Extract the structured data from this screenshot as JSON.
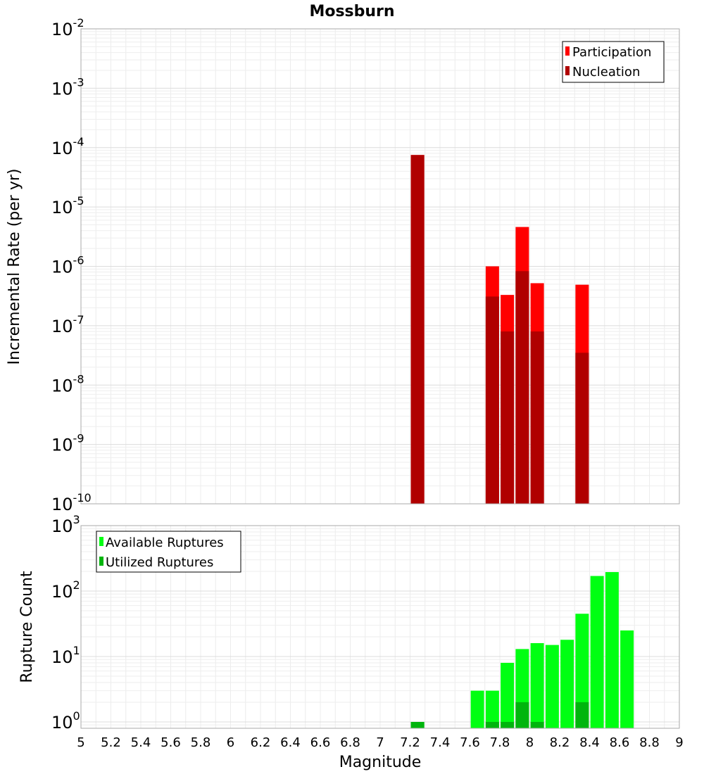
{
  "chart_data": [
    {
      "type": "bar",
      "title": "Mossburn",
      "ylabel": "Incremental Rate (per yr)",
      "yscale": "log",
      "ylim": [
        1e-10,
        0.01
      ],
      "xlim": [
        5,
        9
      ],
      "grid": true,
      "legend_position": "top-right",
      "yticks": [
        {
          "base": "10",
          "exp": "-2"
        },
        {
          "base": "10",
          "exp": "-3"
        },
        {
          "base": "10",
          "exp": "-4"
        },
        {
          "base": "10",
          "exp": "-5"
        },
        {
          "base": "10",
          "exp": "-6"
        },
        {
          "base": "10",
          "exp": "-7"
        },
        {
          "base": "10",
          "exp": "-8"
        },
        {
          "base": "10",
          "exp": "-9"
        },
        {
          "base": "10",
          "exp": "-10"
        }
      ],
      "series": [
        {
          "name": "Participation",
          "color": "#ff0000",
          "x": [
            7.25,
            7.75,
            7.85,
            7.95,
            8.05,
            8.35
          ],
          "values": [
            7.5e-05,
            1e-06,
            3.3e-07,
            4.6e-06,
            5.2e-07,
            4.9e-07
          ]
        },
        {
          "name": "Nucleation",
          "color": "#b00000",
          "x": [
            7.25,
            7.75,
            7.85,
            7.95,
            8.05,
            8.35
          ],
          "values": [
            7.5e-05,
            3.1e-07,
            8e-08,
            8.3e-07,
            8e-08,
            3.5e-08
          ]
        }
      ]
    },
    {
      "type": "bar",
      "ylabel": "Rupture Count",
      "xlabel": "Magnitude",
      "yscale": "log",
      "ylim": [
        0.8,
        1000
      ],
      "xlim": [
        5,
        9
      ],
      "grid": true,
      "legend_position": "top-left",
      "yticks": [
        {
          "base": "10",
          "exp": "3"
        },
        {
          "base": "10",
          "exp": "2"
        },
        {
          "base": "10",
          "exp": "1"
        },
        {
          "base": "10",
          "exp": "0"
        }
      ],
      "xticks": [
        "5",
        "5.2",
        "5.4",
        "5.6",
        "5.8",
        "6",
        "6.2",
        "6.4",
        "6.6",
        "6.8",
        "7",
        "7.2",
        "7.4",
        "7.6",
        "7.8",
        "8",
        "8.2",
        "8.4",
        "8.6",
        "8.8",
        "9"
      ],
      "series": [
        {
          "name": "Available Ruptures",
          "color": "#00ff12",
          "x": [
            7.25,
            7.65,
            7.75,
            7.85,
            7.95,
            8.05,
            8.15,
            8.25,
            8.35,
            8.45,
            8.55,
            8.65
          ],
          "values": [
            1,
            3,
            3,
            8,
            13,
            16,
            15,
            18,
            45,
            170,
            195,
            25
          ]
        },
        {
          "name": "Utilized Ruptures",
          "color": "#00b50d",
          "x": [
            7.25,
            7.75,
            7.85,
            7.95,
            8.05,
            8.35
          ],
          "values": [
            1,
            1,
            1,
            2,
            1,
            2
          ]
        }
      ]
    }
  ]
}
